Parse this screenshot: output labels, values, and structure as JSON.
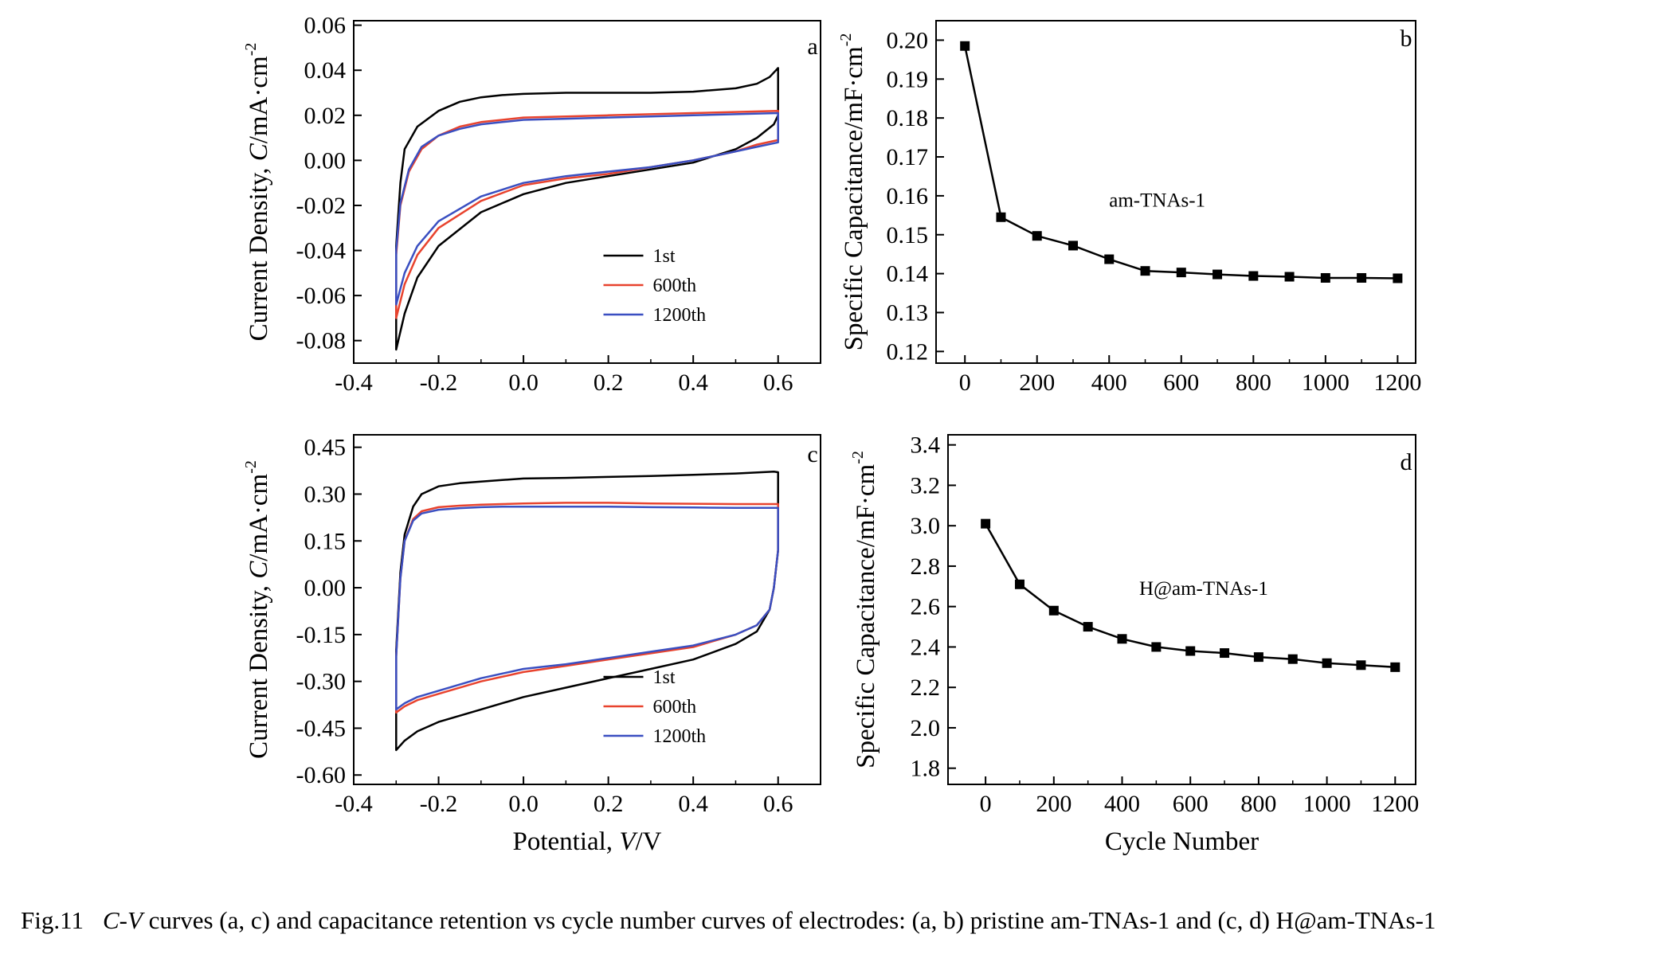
{
  "caption": {
    "label": "Fig.11",
    "italic": "C-V",
    "text": " curves (a, c) and capacitance retention vs cycle number curves of electrodes: (a, b) pristine am-TNAs-1 and (c, d) H@am-TNAs-1"
  },
  "chart_data": [
    {
      "panel": "a",
      "type": "line",
      "xlabel": "",
      "ylabel": "Current Density, C/mA·cm-2",
      "xlim": [
        -0.4,
        0.7
      ],
      "ylim": [
        -0.09,
        0.062
      ],
      "xticks": [
        "-0.4",
        "-0.2",
        "0.0",
        "0.2",
        "0.4",
        "0.6"
      ],
      "yticks": [
        "0.06",
        "0.04",
        "0.02",
        "0.00",
        "-0.02",
        "-0.04",
        "-0.06",
        "-0.08"
      ],
      "legend": [
        "1st",
        "600th",
        "1200th"
      ],
      "legend_position": "bottom-right",
      "colors": [
        "#000000",
        "#e8432e",
        "#3a4fc1"
      ],
      "series": [
        {
          "name": "1st",
          "x": [
            -0.3,
            -0.29,
            -0.28,
            -0.25,
            -0.2,
            -0.15,
            -0.1,
            -0.05,
            0.0,
            0.1,
            0.2,
            0.3,
            0.4,
            0.5,
            0.55,
            0.58,
            0.595,
            0.6,
            0.6,
            0.59,
            0.55,
            0.5,
            0.4,
            0.3,
            0.2,
            0.1,
            0.0,
            -0.1,
            -0.2,
            -0.25,
            -0.28,
            -0.3,
            -0.3
          ],
          "y": [
            -0.038,
            -0.01,
            0.005,
            0.015,
            0.022,
            0.026,
            0.028,
            0.029,
            0.0295,
            0.03,
            0.03,
            0.03,
            0.0305,
            0.032,
            0.034,
            0.037,
            0.04,
            0.041,
            0.02,
            0.016,
            0.01,
            0.005,
            -0.001,
            -0.004,
            -0.007,
            -0.01,
            -0.015,
            -0.023,
            -0.038,
            -0.052,
            -0.068,
            -0.084,
            -0.038
          ]
        },
        {
          "name": "600th",
          "x": [
            -0.3,
            -0.29,
            -0.27,
            -0.24,
            -0.2,
            -0.15,
            -0.1,
            -0.05,
            0.0,
            0.1,
            0.2,
            0.3,
            0.4,
            0.5,
            0.6,
            0.6,
            0.55,
            0.5,
            0.4,
            0.3,
            0.2,
            0.1,
            0.0,
            -0.1,
            -0.2,
            -0.25,
            -0.28,
            -0.3,
            -0.3
          ],
          "y": [
            -0.042,
            -0.02,
            -0.005,
            0.005,
            0.011,
            0.015,
            0.017,
            0.018,
            0.019,
            0.0195,
            0.02,
            0.0205,
            0.021,
            0.0215,
            0.022,
            0.009,
            0.007,
            0.004,
            0.0,
            -0.003,
            -0.006,
            -0.008,
            -0.011,
            -0.018,
            -0.03,
            -0.042,
            -0.055,
            -0.07,
            -0.042
          ]
        },
        {
          "name": "1200th",
          "x": [
            -0.3,
            -0.29,
            -0.27,
            -0.24,
            -0.2,
            -0.15,
            -0.1,
            -0.05,
            0.0,
            0.1,
            0.2,
            0.3,
            0.4,
            0.5,
            0.6,
            0.6,
            0.55,
            0.5,
            0.4,
            0.3,
            0.2,
            0.1,
            0.0,
            -0.1,
            -0.2,
            -0.25,
            -0.28,
            -0.3,
            -0.3
          ],
          "y": [
            -0.04,
            -0.019,
            -0.004,
            0.006,
            0.011,
            0.014,
            0.016,
            0.017,
            0.018,
            0.0185,
            0.019,
            0.0195,
            0.02,
            0.0205,
            0.021,
            0.008,
            0.006,
            0.004,
            0.0,
            -0.003,
            -0.005,
            -0.007,
            -0.01,
            -0.016,
            -0.027,
            -0.038,
            -0.05,
            -0.064,
            -0.04
          ]
        }
      ]
    },
    {
      "panel": "b",
      "type": "line",
      "xlabel": "",
      "ylabel": "Specific Capacitance/mF·cm-2",
      "xlim": [
        -80,
        1250
      ],
      "ylim": [
        0.117,
        0.205
      ],
      "xticks": [
        "0",
        "200",
        "400",
        "600",
        "800",
        "1000",
        "1200"
      ],
      "yticks": [
        "0.20",
        "0.19",
        "0.18",
        "0.17",
        "0.16",
        "0.15",
        "0.14",
        "0.13",
        "0.12"
      ],
      "annotation": "am-TNAs-1",
      "series": [
        {
          "x": [
            0,
            100,
            200,
            300,
            400,
            500,
            600,
            700,
            800,
            900,
            1000,
            1100,
            1200
          ],
          "y": [
            0.1985,
            0.1545,
            0.1497,
            0.1472,
            0.1437,
            0.1407,
            0.1403,
            0.1398,
            0.1394,
            0.1392,
            0.1389,
            0.1389,
            0.1388
          ]
        }
      ]
    },
    {
      "panel": "c",
      "type": "line",
      "xlabel": "Potential, V/V",
      "ylabel": "Current Density, C/mA·cm-2",
      "xlim": [
        -0.4,
        0.7
      ],
      "ylim": [
        -0.63,
        0.49
      ],
      "xticks": [
        "-0.4",
        "-0.2",
        "0.0",
        "0.2",
        "0.4",
        "0.6"
      ],
      "yticks": [
        "0.45",
        "0.30",
        "0.15",
        "0.00",
        "-0.15",
        "-0.30",
        "-0.45",
        "-0.60"
      ],
      "legend": [
        "1st",
        "600th",
        "1200th"
      ],
      "legend_position": "bottom-right",
      "colors": [
        "#000000",
        "#e8432e",
        "#3a4fc1"
      ],
      "series": [
        {
          "name": "1st",
          "x": [
            -0.3,
            -0.29,
            -0.28,
            -0.26,
            -0.24,
            -0.2,
            -0.15,
            -0.1,
            -0.05,
            0.0,
            0.1,
            0.2,
            0.3,
            0.4,
            0.5,
            0.59,
            0.6,
            0.6,
            0.59,
            0.58,
            0.55,
            0.5,
            0.4,
            0.3,
            0.2,
            0.1,
            0.0,
            -0.1,
            -0.2,
            -0.25,
            -0.28,
            -0.3,
            -0.3
          ],
          "y": [
            -0.2,
            0.05,
            0.17,
            0.26,
            0.3,
            0.325,
            0.335,
            0.34,
            0.345,
            0.35,
            0.352,
            0.355,
            0.358,
            0.362,
            0.366,
            0.372,
            0.37,
            0.12,
            0.0,
            -0.07,
            -0.14,
            -0.18,
            -0.23,
            -0.26,
            -0.29,
            -0.32,
            -0.35,
            -0.39,
            -0.43,
            -0.46,
            -0.49,
            -0.52,
            -0.2
          ]
        },
        {
          "name": "600th",
          "x": [
            -0.3,
            -0.29,
            -0.28,
            -0.26,
            -0.24,
            -0.2,
            -0.15,
            -0.1,
            -0.05,
            0.0,
            0.1,
            0.2,
            0.3,
            0.4,
            0.5,
            0.6,
            0.6,
            0.59,
            0.58,
            0.55,
            0.5,
            0.4,
            0.3,
            0.2,
            0.1,
            0.0,
            -0.1,
            -0.2,
            -0.25,
            -0.28,
            -0.3,
            -0.3
          ],
          "y": [
            -0.22,
            0.03,
            0.15,
            0.22,
            0.245,
            0.258,
            0.263,
            0.266,
            0.268,
            0.27,
            0.272,
            0.272,
            0.27,
            0.269,
            0.268,
            0.268,
            0.12,
            0.0,
            -0.07,
            -0.12,
            -0.15,
            -0.19,
            -0.21,
            -0.23,
            -0.25,
            -0.27,
            -0.3,
            -0.34,
            -0.36,
            -0.38,
            -0.4,
            -0.22
          ]
        },
        {
          "name": "1200th",
          "x": [
            -0.3,
            -0.29,
            -0.28,
            -0.26,
            -0.24,
            -0.2,
            -0.15,
            -0.1,
            -0.05,
            0.0,
            0.1,
            0.2,
            0.3,
            0.4,
            0.5,
            0.6,
            0.6,
            0.59,
            0.58,
            0.55,
            0.5,
            0.4,
            0.3,
            0.2,
            0.1,
            0.0,
            -0.1,
            -0.2,
            -0.25,
            -0.28,
            -0.3,
            -0.3
          ],
          "y": [
            -0.22,
            0.03,
            0.15,
            0.215,
            0.238,
            0.25,
            0.255,
            0.258,
            0.26,
            0.26,
            0.26,
            0.26,
            0.258,
            0.257,
            0.256,
            0.256,
            0.12,
            0.0,
            -0.07,
            -0.12,
            -0.15,
            -0.185,
            -0.205,
            -0.225,
            -0.245,
            -0.26,
            -0.29,
            -0.33,
            -0.35,
            -0.37,
            -0.39,
            -0.22
          ]
        }
      ]
    },
    {
      "panel": "d",
      "type": "line",
      "xlabel": "Cycle Number",
      "ylabel": "Specific Capacitance/mF·cm-2",
      "xlim": [
        -110,
        1260
      ],
      "ylim": [
        1.72,
        3.45
      ],
      "xticks": [
        "0",
        "200",
        "400",
        "600",
        "800",
        "1000",
        "1200"
      ],
      "yticks": [
        "3.4",
        "3.2",
        "3.0",
        "2.8",
        "2.6",
        "2.4",
        "2.2",
        "2.0",
        "1.8"
      ],
      "annotation": "H@am-TNAs-1",
      "series": [
        {
          "x": [
            0,
            100,
            200,
            300,
            400,
            500,
            600,
            700,
            800,
            900,
            1000,
            1100,
            1200
          ],
          "y": [
            3.01,
            2.71,
            2.58,
            2.5,
            2.44,
            2.4,
            2.38,
            2.37,
            2.35,
            2.34,
            2.32,
            2.31,
            2.3
          ]
        }
      ]
    }
  ]
}
